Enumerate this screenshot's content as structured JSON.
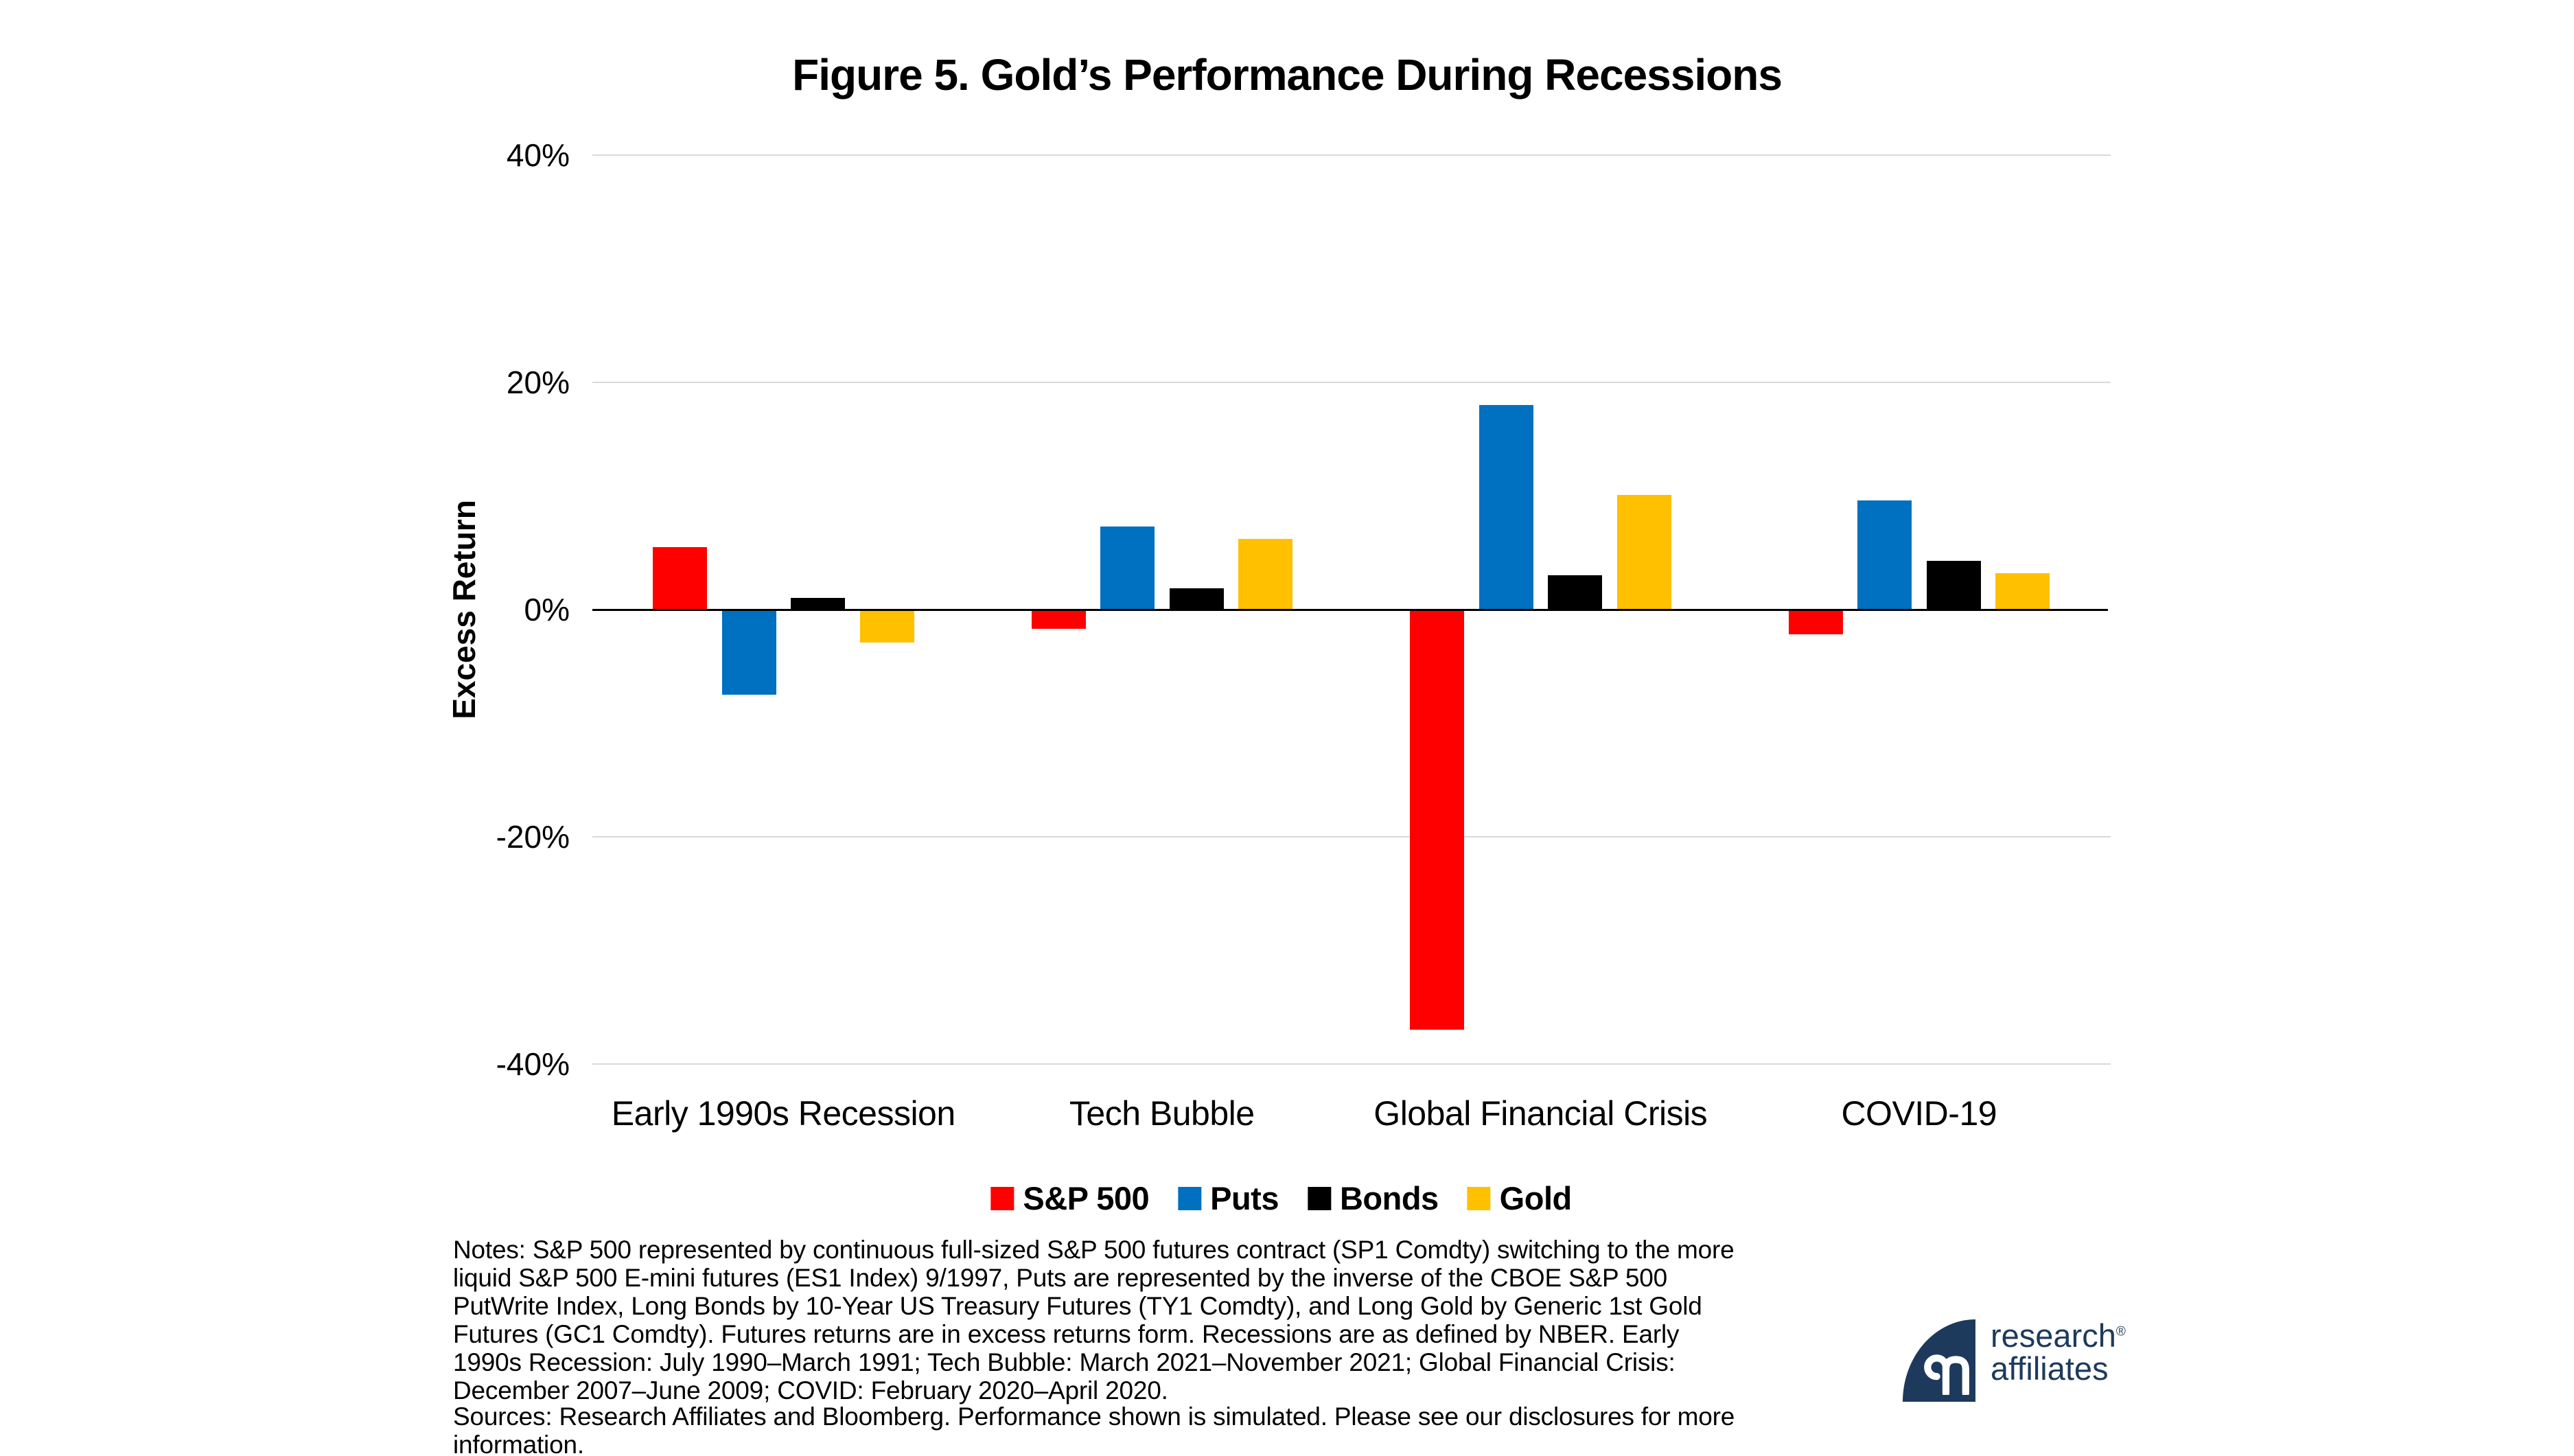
{
  "figure": {
    "title": "Figure 5. Gold’s Performance During Recessions"
  },
  "axis": {
    "y_label": "Excess Return",
    "ticks": [
      {
        "label": "40%",
        "value": 40
      },
      {
        "label": "20%",
        "value": 20
      },
      {
        "label": "0%",
        "value": 0
      },
      {
        "label": "-20%",
        "value": -20
      },
      {
        "label": "-40%",
        "value": -40
      }
    ],
    "y_min": -40,
    "y_max": 40,
    "gridline_color": "#D9D9D9",
    "axis_color": "#000000"
  },
  "chart_data": {
    "type": "bar",
    "title": "Figure 5. Gold’s Performance During Recessions",
    "xlabel": "",
    "ylabel": "Excess Return",
    "ylim": [
      -40,
      40
    ],
    "grid": "horizontal",
    "legend_position": "bottom",
    "categories": [
      "Early 1990s Recession",
      "Tech Bubble",
      "Global Financial Crisis",
      "COVID-19"
    ],
    "series": [
      {
        "name": "S&P 500",
        "color": "#FF0000",
        "values": [
          5.5,
          -1.7,
          -37.0,
          -2.2
        ]
      },
      {
        "name": "Puts",
        "color": "#0070C0",
        "values": [
          -7.5,
          7.3,
          18.0,
          9.6
        ]
      },
      {
        "name": "Bonds",
        "color": "#000000",
        "values": [
          1.0,
          1.9,
          3.0,
          4.3
        ]
      },
      {
        "name": "Gold",
        "color": "#FFC000",
        "values": [
          -2.9,
          6.2,
          10.1,
          3.2
        ]
      }
    ]
  },
  "notes": "Notes: S&P 500 represented by continuous full-sized S&P 500 futures contract (SP1 Comdty) switching to the more liquid S&P 500 E-mini futures (ES1 Index) 9/1997, Puts are represented by the inverse of the CBOE S&P 500 PutWrite Index, Long Bonds by 10-Year US Treasury Futures (TY1 Comdty), and Long Gold by Generic 1st Gold Futures (GC1 Comdty). Futures returns are in excess returns form. Recessions are as defined by NBER. Early 1990s Recession: July 1990–March 1991; Tech Bubble: March 2021–November 2021; Global Financial Crisis: December 2007–June 2009; COVID: February 2020–April 2020.",
  "sources": "Sources: Research Affiliates and Bloomberg. Performance shown is simulated. Please see our disclosures for more information.",
  "logo": {
    "word1": "research",
    "word2": "affiliates",
    "registered": "®",
    "color": "#1D3A5C"
  }
}
